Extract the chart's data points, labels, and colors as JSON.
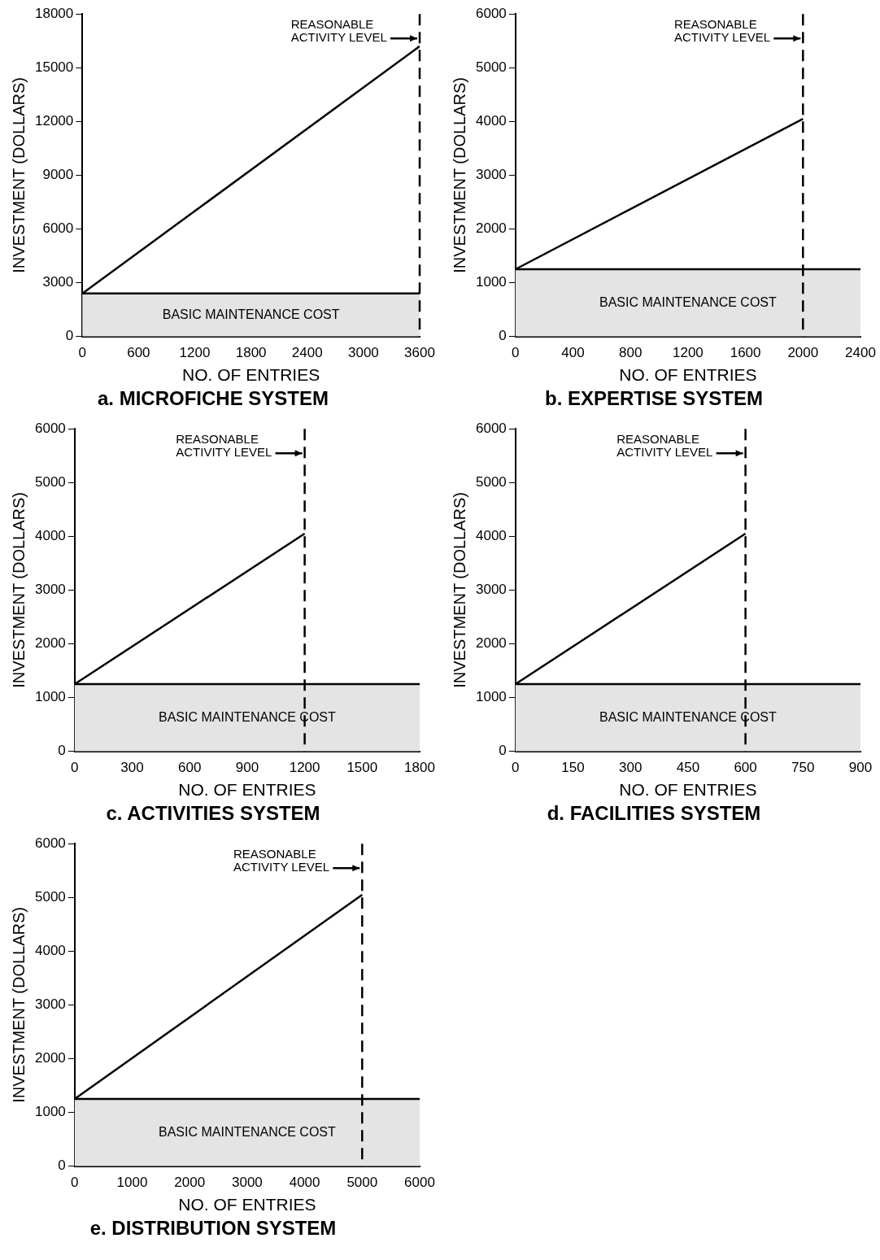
{
  "chart_data": [
    {
      "type": "line",
      "title": "a. MICROFICHE SYSTEM",
      "xlabel": "NO. OF ENTRIES",
      "ylabel": "INVESTMENT (DOLLARS)",
      "x": [
        0,
        3600
      ],
      "values": [
        2400,
        16200
      ],
      "color": "#000000",
      "marker": "none",
      "xlim": [
        0,
        3600
      ],
      "xticks": [
        0,
        600,
        1200,
        1800,
        2400,
        3000,
        3600
      ],
      "ylim": [
        0,
        18000
      ],
      "yticks": [
        0,
        3000,
        6000,
        9000,
        12000,
        15000,
        18000
      ],
      "ref_lines": [
        {
          "axis": "x",
          "value": 3600,
          "label": "REASONABLE ACTIVITY LEVEL",
          "line_style": "dashed",
          "color": "#000000"
        },
        {
          "axis": "y",
          "value": 2400,
          "line_style": "solid",
          "color": "#000000"
        }
      ],
      "bands": [
        {
          "axis": "y",
          "from": 0,
          "to": 2400,
          "label": "BASIC MAINTENANCE COST",
          "color": "#e4e4e4"
        }
      ]
    },
    {
      "type": "line",
      "title": "b. EXPERTISE SYSTEM",
      "xlabel": "NO. OF ENTRIES",
      "ylabel": "INVESTMENT (DOLLARS)",
      "x": [
        0,
        2000
      ],
      "values": [
        1250,
        4050
      ],
      "color": "#000000",
      "marker": "none",
      "xlim": [
        0,
        2400
      ],
      "xticks": [
        0,
        400,
        800,
        1200,
        1600,
        2000,
        2400
      ],
      "ylim": [
        0,
        6000
      ],
      "yticks": [
        0,
        1000,
        2000,
        3000,
        4000,
        5000,
        6000
      ],
      "ref_lines": [
        {
          "axis": "x",
          "value": 2000,
          "label": "REASONABLE ACTIVITY LEVEL",
          "line_style": "dashed",
          "color": "#000000"
        },
        {
          "axis": "y",
          "value": 1250,
          "line_style": "solid",
          "color": "#000000"
        }
      ],
      "bands": [
        {
          "axis": "y",
          "from": 0,
          "to": 1250,
          "label": "BASIC MAINTENANCE COST",
          "color": "#e4e4e4"
        }
      ]
    },
    {
      "type": "line",
      "title": "c. ACTIVITIES SYSTEM",
      "xlabel": "NO. OF ENTRIES",
      "ylabel": "INVESTMENT (DOLLARS)",
      "x": [
        0,
        1200
      ],
      "values": [
        1250,
        4050
      ],
      "color": "#000000",
      "marker": "none",
      "xlim": [
        0,
        1800
      ],
      "xticks": [
        0,
        300,
        600,
        900,
        1200,
        1500,
        1800
      ],
      "ylim": [
        0,
        6000
      ],
      "yticks": [
        0,
        1000,
        2000,
        3000,
        4000,
        5000,
        6000
      ],
      "ref_lines": [
        {
          "axis": "x",
          "value": 1200,
          "label": "REASONABLE ACTIVITY LEVEL",
          "line_style": "dashed",
          "color": "#000000"
        },
        {
          "axis": "y",
          "value": 1250,
          "line_style": "solid",
          "color": "#000000"
        }
      ],
      "bands": [
        {
          "axis": "y",
          "from": 0,
          "to": 1250,
          "label": "BASIC MAINTENANCE COST",
          "color": "#e4e4e4"
        }
      ]
    },
    {
      "type": "line",
      "title": "d. FACILITIES SYSTEM",
      "xlabel": "NO. OF ENTRIES",
      "ylabel": "INVESTMENT (DOLLARS)",
      "x": [
        0,
        600
      ],
      "values": [
        1250,
        4050
      ],
      "color": "#000000",
      "marker": "none",
      "xlim": [
        0,
        900
      ],
      "xticks": [
        0,
        150,
        300,
        450,
        600,
        750,
        900
      ],
      "ylim": [
        0,
        6000
      ],
      "yticks": [
        0,
        1000,
        2000,
        3000,
        4000,
        5000,
        6000
      ],
      "ref_lines": [
        {
          "axis": "x",
          "value": 600,
          "label": "REASONABLE ACTIVITY LEVEL",
          "line_style": "dashed",
          "color": "#000000"
        },
        {
          "axis": "y",
          "value": 1250,
          "line_style": "solid",
          "color": "#000000"
        }
      ],
      "bands": [
        {
          "axis": "y",
          "from": 0,
          "to": 1250,
          "label": "BASIC MAINTENANCE COST",
          "color": "#e4e4e4"
        }
      ]
    },
    {
      "type": "line",
      "title": "e. DISTRIBUTION SYSTEM",
      "xlabel": "NO. OF ENTRIES",
      "ylabel": "INVESTMENT (DOLLARS)",
      "x": [
        0,
        5000
      ],
      "values": [
        1250,
        5050
      ],
      "color": "#000000",
      "marker": "none",
      "xlim": [
        0,
        6000
      ],
      "xticks": [
        0,
        1000,
        2000,
        3000,
        4000,
        5000,
        6000
      ],
      "ylim": [
        0,
        6000
      ],
      "yticks": [
        0,
        1000,
        2000,
        3000,
        4000,
        5000,
        6000
      ],
      "ref_lines": [
        {
          "axis": "x",
          "value": 5000,
          "label": "REASONABLE ACTIVITY LEVEL",
          "line_style": "dashed",
          "color": "#000000"
        },
        {
          "axis": "y",
          "value": 1250,
          "line_style": "solid",
          "color": "#000000"
        }
      ],
      "bands": [
        {
          "axis": "y",
          "from": 0,
          "to": 1250,
          "label": "BASIC MAINTENANCE COST",
          "color": "#e4e4e4"
        }
      ]
    }
  ]
}
